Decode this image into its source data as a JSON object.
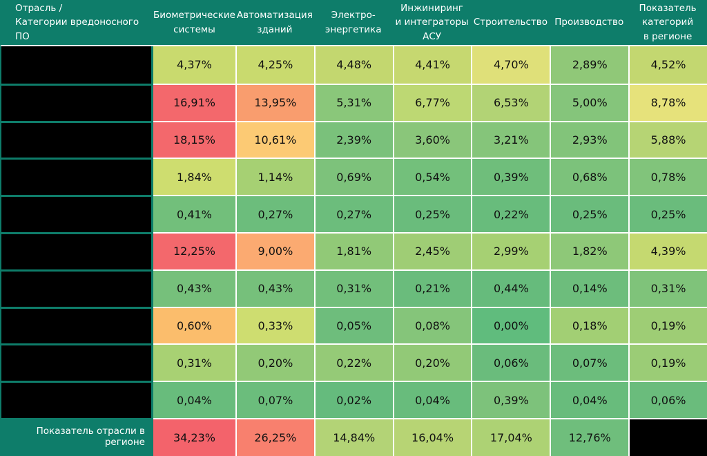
{
  "colors": {
    "header_bg": "#0e7d6a",
    "label_bg": "#000000",
    "grid_line": "#ffffff",
    "header_text": "#ffffff",
    "cell_text": "#111111"
  },
  "table": {
    "corner_header_lines": [
      "Отрасль /",
      "Категории вредоносного ПО"
    ],
    "column_header_lines": [
      [
        "Биометрические",
        "системы"
      ],
      [
        "Автоматизация",
        "зданий"
      ],
      [
        "Электро-",
        "энергетика"
      ],
      [
        "Инжиниринг",
        "и интеграторы",
        "АСУ"
      ],
      [
        "Строительство"
      ],
      [
        "Производство"
      ],
      [
        "Показатель",
        "категорий",
        "в регионе"
      ]
    ],
    "row_labels_redacted": true,
    "footer_label": "Показатель отрасли в регионе",
    "footer_last_cell_redacted": true
  },
  "chart_data": {
    "type": "heatmap",
    "title": "",
    "value_format": "percent, comma decimal separator, 2 decimal places",
    "palette": {
      "low": "#63be7b",
      "mid": "#ffeb84",
      "high": "#f8696b"
    },
    "columns": [
      "Биометрические системы",
      "Автоматизация зданий",
      "Электро-энергетика",
      "Инжиниринг и интеграторы АСУ",
      "Строительство",
      "Производство",
      "Показатель категорий в регионе"
    ],
    "rows": [
      {
        "label": "",
        "redacted": true,
        "values": [
          4.37,
          4.25,
          4.48,
          4.41,
          4.7,
          2.89,
          4.52
        ],
        "colors": [
          "#c9da6e",
          "#c9da6e",
          "#c3d76f",
          "#c6d870",
          "#dfe079",
          "#90c878",
          "#c3d770"
        ]
      },
      {
        "label": "",
        "redacted": true,
        "values": [
          16.91,
          13.95,
          5.31,
          6.77,
          6.53,
          5.0,
          8.78
        ],
        "colors": [
          "#f3686c",
          "#f99d6e",
          "#8ac77a",
          "#bdd873",
          "#b2d375",
          "#85c57b",
          "#e6e27b"
        ]
      },
      {
        "label": "",
        "redacted": true,
        "values": [
          18.15,
          10.61,
          2.39,
          3.6,
          3.21,
          2.93,
          5.88
        ],
        "colors": [
          "#f3686c",
          "#fcca74",
          "#7ac17b",
          "#8ac67a",
          "#85c57a",
          "#82c47a",
          "#b6d474"
        ]
      },
      {
        "label": "",
        "redacted": true,
        "values": [
          1.84,
          1.14,
          0.69,
          0.54,
          0.39,
          0.68,
          0.78
        ],
        "colors": [
          "#cedd6f",
          "#a6d073",
          "#7dc27b",
          "#73c07b",
          "#6fbe7b",
          "#7cc27b",
          "#81c47b"
        ]
      },
      {
        "label": "",
        "redacted": true,
        "values": [
          0.41,
          0.27,
          0.27,
          0.25,
          0.22,
          0.25,
          0.25
        ],
        "colors": [
          "#72bf7b",
          "#6cbd7c",
          "#6cbd7c",
          "#6abc7c",
          "#68bc7c",
          "#6abc7c",
          "#6abc7c"
        ]
      },
      {
        "label": "",
        "redacted": true,
        "values": [
          12.25,
          9.0,
          1.81,
          2.45,
          2.99,
          1.82,
          4.39
        ],
        "colors": [
          "#f3686c",
          "#fbaa71",
          "#91c977",
          "#9fcd75",
          "#a6d073",
          "#8ec878",
          "#c5d970"
        ]
      },
      {
        "label": "",
        "redacted": true,
        "values": [
          0.43,
          0.43,
          0.31,
          0.21,
          0.44,
          0.14,
          0.31
        ],
        "colors": [
          "#76c07b",
          "#76c07b",
          "#72bf7b",
          "#6abc7c",
          "#66bb7c",
          "#6dbd7c",
          "#7fc37a"
        ]
      },
      {
        "label": "",
        "redacted": true,
        "values": [
          0.6,
          0.33,
          0.05,
          0.08,
          0.0,
          0.18,
          0.19
        ],
        "colors": [
          "#fbbd6c",
          "#cedd70",
          "#6ebd7c",
          "#85c57a",
          "#60bc7d",
          "#a2cf74",
          "#9ecd75"
        ]
      },
      {
        "label": "",
        "redacted": true,
        "values": [
          0.31,
          0.2,
          0.22,
          0.2,
          0.06,
          0.07,
          0.19
        ],
        "colors": [
          "#a8d173",
          "#92c977",
          "#95ca77",
          "#92c977",
          "#6abc7c",
          "#6cbd7c",
          "#9bcc76"
        ]
      },
      {
        "label": "",
        "redacted": true,
        "values": [
          0.04,
          0.07,
          0.02,
          0.04,
          0.39,
          0.04,
          0.06
        ],
        "colors": [
          "#68bc7c",
          "#6bbd7c",
          "#65bb7d",
          "#68bc7c",
          "#7dc27b",
          "#68bc7c",
          "#6abc7c"
        ]
      }
    ],
    "footer": {
      "label": "Показатель отрасли в регионе",
      "values": [
        34.23,
        26.25,
        14.84,
        16.04,
        17.04,
        12.76
      ],
      "colors": [
        "#f3636b",
        "#f8806e",
        "#b3d376",
        "#b7d474",
        "#add274",
        "#6fbe7c"
      ],
      "last_cell": "redacted-black"
    }
  }
}
